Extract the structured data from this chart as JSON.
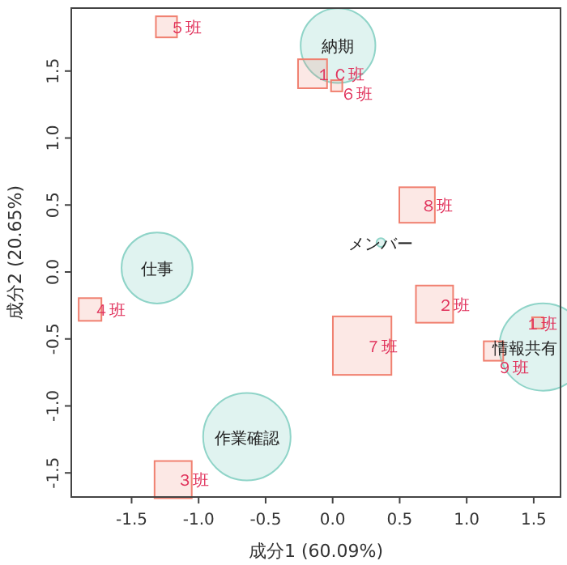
{
  "chart_data": {
    "type": "bubble",
    "xlabel": "成分1 (60.09%)",
    "ylabel": "成分2 (20.65%)",
    "xlim": [
      -1.95,
      1.7
    ],
    "ylim": [
      -1.68,
      1.97
    ],
    "xticks": [
      -1.5,
      {
        "value": -1,
        "label": "-1.0"
      },
      -0.5,
      {
        "value": 0,
        "label": "0.0"
      },
      0.5,
      {
        "value": 1,
        "label": "1.0"
      },
      1.5
    ],
    "yticks": [
      -1.5,
      {
        "value": -1,
        "label": "-1.0"
      },
      -0.5,
      {
        "value": 0,
        "label": "0.0"
      },
      0.5,
      {
        "value": 1,
        "label": "1.0"
      },
      1.5
    ],
    "series": [
      {
        "marker": "circle",
        "color": "#8fd4c8",
        "x": [
          0.04,
          -1.31,
          0.36,
          1.57,
          -0.64
        ],
        "values": [
          1.69,
          0.03,
          0.22,
          -0.56,
          -1.23
        ],
        "sizes": [
          0.73,
          0.66,
          0.01,
          1,
          1
        ]
      },
      {
        "marker": "square",
        "color": "#f08070",
        "x": [
          -1.24,
          -0.15,
          0.03,
          0.63,
          0.76,
          -1.81,
          1.53,
          0.22,
          1.2,
          -1.19
        ],
        "values": [
          1.83,
          1.48,
          1.39,
          0.5,
          -0.24,
          -0.28,
          -0.38,
          -0.55,
          -0.59,
          -1.55
        ],
        "sizes": [
          0.074,
          0.14,
          0.021,
          0.21,
          0.23,
          0.086,
          0.021,
          0.57,
          0.063,
          0.23
        ]
      }
    ],
    "annotations": [
      {
        "text": "納期",
        "x": 0.04,
        "y": 1.69
      },
      {
        "text": "仕事",
        "x": -1.31,
        "y": 0.03
      },
      {
        "text": "メンバー",
        "x": 0.36,
        "y": 0.22
      },
      {
        "text": "情報共有",
        "x": 1.57,
        "y": -0.56
      },
      {
        "text": "作業確認",
        "x": -0.64,
        "y": -1.23
      },
      {
        "text": "５班",
        "x": -1.24,
        "y": 1.83
      },
      {
        "text": "１Ｃ班",
        "x": -0.15,
        "y": 1.48
      },
      {
        "text": "６班",
        "x": 0.03,
        "y": 1.39
      },
      {
        "text": "８班",
        "x": 0.63,
        "y": 0.5
      },
      {
        "text": "２班",
        "x": 0.76,
        "y": -0.24
      },
      {
        "text": "４班",
        "x": -1.81,
        "y": -0.28
      },
      {
        "text": "１班",
        "x": 1.53,
        "y": -0.38
      },
      {
        "text": "７班",
        "x": 0.22,
        "y": -0.55
      },
      {
        "text": "９班",
        "x": 1.2,
        "y": -0.59
      },
      {
        "text": "３班",
        "x": -1.19,
        "y": -1.55
      }
    ]
  }
}
